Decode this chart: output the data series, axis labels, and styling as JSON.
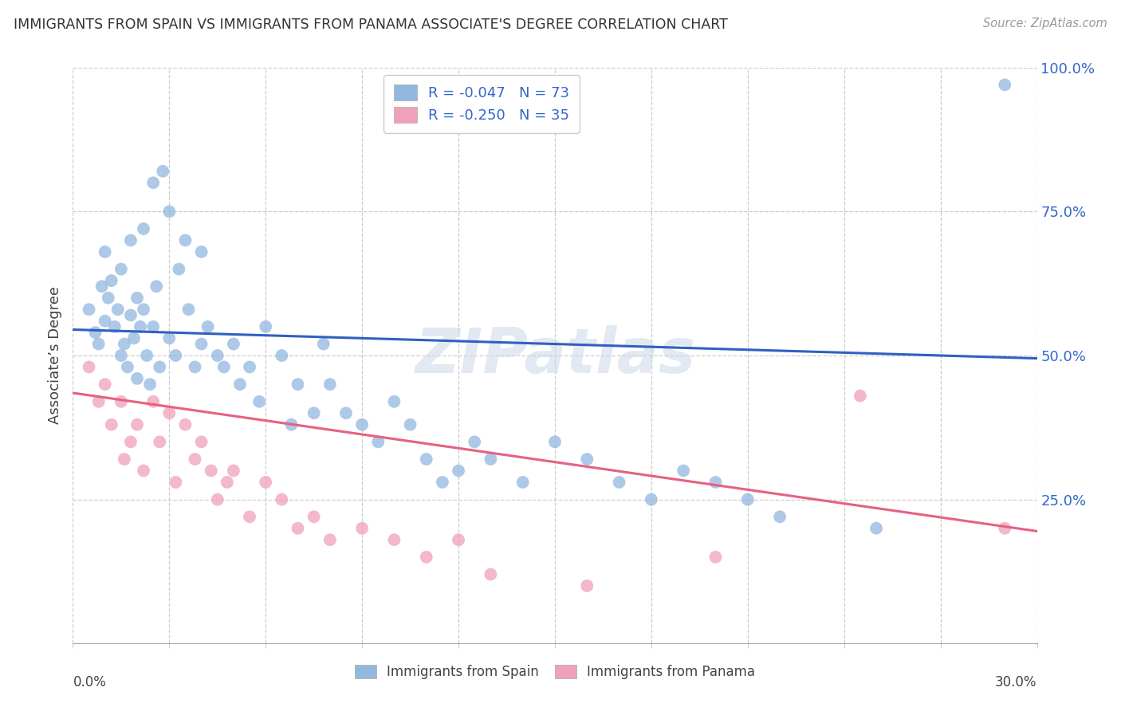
{
  "title": "IMMIGRANTS FROM SPAIN VS IMMIGRANTS FROM PANAMA ASSOCIATE'S DEGREE CORRELATION CHART",
  "source": "Source: ZipAtlas.com",
  "ylabel": "Associate’s Degree",
  "spain_color": "#92b8e0",
  "panama_color": "#f0a0b8",
  "spain_line_color": "#3060c0",
  "panama_line_color": "#e86080",
  "background_color": "#ffffff",
  "watermark": "ZIPatlas",
  "xlim": [
    0.0,
    0.3
  ],
  "ylim": [
    0.0,
    1.0
  ],
  "spain_x": [
    0.005,
    0.007,
    0.008,
    0.009,
    0.01,
    0.01,
    0.011,
    0.012,
    0.013,
    0.014,
    0.015,
    0.015,
    0.016,
    0.017,
    0.018,
    0.018,
    0.019,
    0.02,
    0.02,
    0.021,
    0.022,
    0.022,
    0.023,
    0.024,
    0.025,
    0.025,
    0.026,
    0.027,
    0.028,
    0.03,
    0.03,
    0.032,
    0.033,
    0.035,
    0.036,
    0.038,
    0.04,
    0.04,
    0.042,
    0.045,
    0.047,
    0.05,
    0.052,
    0.055,
    0.058,
    0.06,
    0.065,
    0.068,
    0.07,
    0.075,
    0.078,
    0.08,
    0.085,
    0.09,
    0.095,
    0.1,
    0.105,
    0.11,
    0.115,
    0.12,
    0.125,
    0.13,
    0.14,
    0.15,
    0.16,
    0.17,
    0.18,
    0.19,
    0.2,
    0.21,
    0.22,
    0.25,
    0.29
  ],
  "spain_y": [
    0.58,
    0.54,
    0.52,
    0.62,
    0.56,
    0.68,
    0.6,
    0.63,
    0.55,
    0.58,
    0.5,
    0.65,
    0.52,
    0.48,
    0.57,
    0.7,
    0.53,
    0.6,
    0.46,
    0.55,
    0.58,
    0.72,
    0.5,
    0.45,
    0.8,
    0.55,
    0.62,
    0.48,
    0.82,
    0.75,
    0.53,
    0.5,
    0.65,
    0.7,
    0.58,
    0.48,
    0.52,
    0.68,
    0.55,
    0.5,
    0.48,
    0.52,
    0.45,
    0.48,
    0.42,
    0.55,
    0.5,
    0.38,
    0.45,
    0.4,
    0.52,
    0.45,
    0.4,
    0.38,
    0.35,
    0.42,
    0.38,
    0.32,
    0.28,
    0.3,
    0.35,
    0.32,
    0.28,
    0.35,
    0.32,
    0.28,
    0.25,
    0.3,
    0.28,
    0.25,
    0.22,
    0.2,
    0.97
  ],
  "panama_x": [
    0.005,
    0.008,
    0.01,
    0.012,
    0.015,
    0.016,
    0.018,
    0.02,
    0.022,
    0.025,
    0.027,
    0.03,
    0.032,
    0.035,
    0.038,
    0.04,
    0.043,
    0.045,
    0.048,
    0.05,
    0.055,
    0.06,
    0.065,
    0.07,
    0.075,
    0.08,
    0.09,
    0.1,
    0.11,
    0.12,
    0.13,
    0.16,
    0.2,
    0.245,
    0.29
  ],
  "panama_y": [
    0.48,
    0.42,
    0.45,
    0.38,
    0.42,
    0.32,
    0.35,
    0.38,
    0.3,
    0.42,
    0.35,
    0.4,
    0.28,
    0.38,
    0.32,
    0.35,
    0.3,
    0.25,
    0.28,
    0.3,
    0.22,
    0.28,
    0.25,
    0.2,
    0.22,
    0.18,
    0.2,
    0.18,
    0.15,
    0.18,
    0.12,
    0.1,
    0.15,
    0.43,
    0.2
  ],
  "spain_line_x": [
    0.0,
    0.3
  ],
  "spain_line_y": [
    0.545,
    0.495
  ],
  "panama_line_x": [
    0.0,
    0.3
  ],
  "panama_line_y": [
    0.435,
    0.195
  ],
  "legend_r1": "R = ",
  "legend_rv1": "-0.047",
  "legend_n1": "   N = 73",
  "legend_r2": "R = ",
  "legend_rv2": "-0.250",
  "legend_n2": "   N = 35",
  "legend_color1": "#92b8e0",
  "legend_color2": "#f0a0b8",
  "legend_r_color": "#3366cc",
  "right_ytick_vals": [
    0.25,
    0.5,
    0.75,
    1.0
  ],
  "right_ytick_labels": [
    "25.0%",
    "50.0%",
    "75.0%",
    "100.0%"
  ],
  "right_ytick_color": "#3366cc"
}
